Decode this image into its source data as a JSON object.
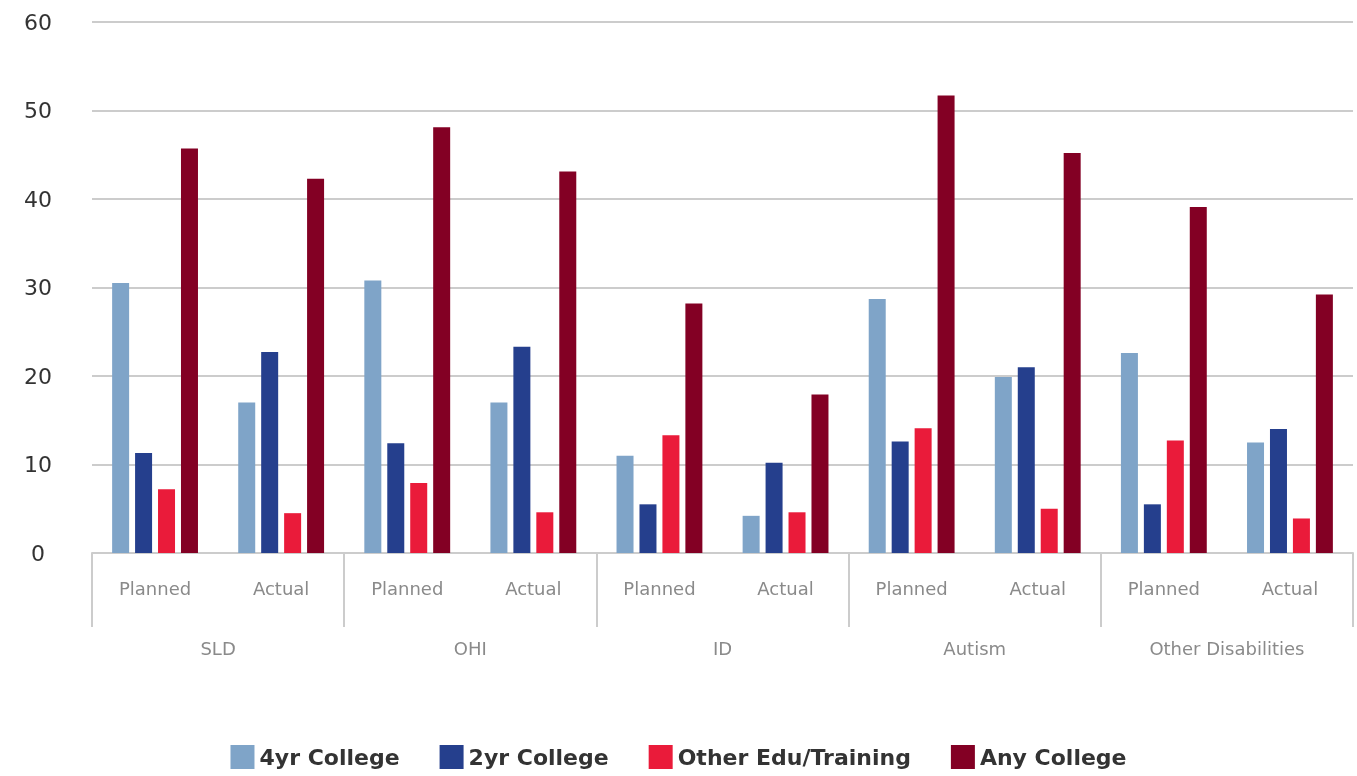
{
  "chart_data": {
    "type": "bar",
    "categories": [
      "Planned",
      "Actual",
      "Planned",
      "Actual",
      "Planned",
      "Actual",
      "Planned",
      "Actual",
      "Planned",
      "Actual"
    ],
    "annotations": [
      "SLD",
      "OHI",
      "ID",
      "Autism",
      "Other Disabilities"
    ],
    "series": [
      {
        "name": "4yr College",
        "color": "#7fa4c8",
        "values": [
          30.5,
          17.0,
          30.8,
          17.0,
          11.0,
          4.2,
          28.7,
          19.9,
          22.6,
          12.5
        ]
      },
      {
        "name": "2yr College",
        "color": "#253f8d",
        "values": [
          11.3,
          22.7,
          12.4,
          23.3,
          5.5,
          10.2,
          12.6,
          21.0,
          5.5,
          14.0
        ]
      },
      {
        "name": "Other Edu/Training",
        "color": "#ea1b3a",
        "values": [
          7.2,
          4.5,
          7.9,
          4.6,
          13.3,
          4.6,
          14.1,
          5.0,
          12.7,
          3.9
        ]
      },
      {
        "name": "Any College",
        "color": "#830024",
        "values": [
          45.7,
          42.3,
          48.1,
          43.1,
          28.2,
          17.9,
          51.7,
          45.2,
          39.1,
          29.2
        ]
      }
    ],
    "ylim": [
      0,
      60
    ],
    "yticks": [
      0,
      10,
      20,
      30,
      40,
      50,
      60
    ],
    "grid": true,
    "legend": "bottom"
  }
}
